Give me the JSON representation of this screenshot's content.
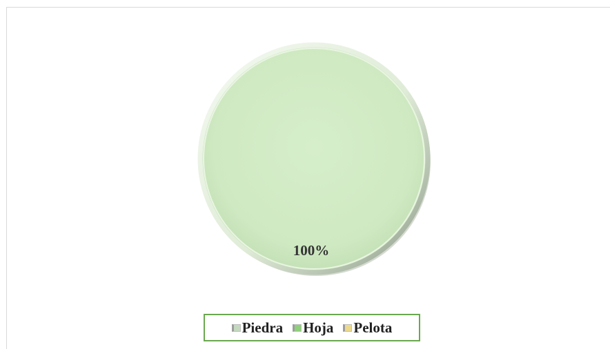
{
  "chart_data": {
    "type": "pie",
    "title": "",
    "categories": [
      "Piedra",
      "Hoja",
      "Pelota"
    ],
    "values": [
      0,
      100,
      0
    ],
    "data_labels": [
      "",
      "100%",
      ""
    ],
    "colors": [
      "#c5d9c0",
      "#d2ecc6",
      "#e8d9a0"
    ],
    "legend_position": "bottom"
  },
  "legend": {
    "items": [
      {
        "label": "Piedra",
        "color": "#c5d9c0"
      },
      {
        "label": "Hoja",
        "color": "#8fd07a"
      },
      {
        "label": "Pelota",
        "color": "#ecd98c"
      }
    ]
  },
  "data_label": "100%"
}
